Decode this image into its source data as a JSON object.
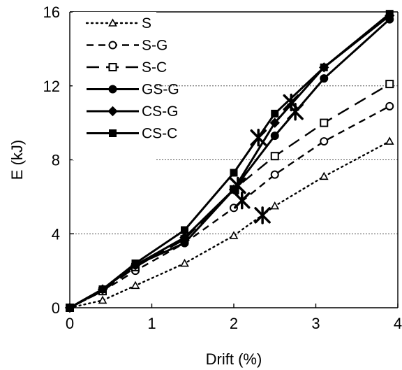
{
  "chart_data": {
    "type": "line",
    "xlabel": "Drift (%)",
    "ylabel": "E (kJ)",
    "xlim": [
      0,
      4
    ],
    "ylim": [
      0,
      16
    ],
    "xticks": [
      "0",
      "1",
      "2",
      "3",
      "4"
    ],
    "yticks": [
      "0",
      "4",
      "8",
      "12",
      "16"
    ],
    "grid": "horizontal dotted lines at y ticks",
    "legend_position": "top-left",
    "series": [
      {
        "name": "S",
        "line_style": "dotted",
        "marker": "triangle-open",
        "x": [
          0,
          0.4,
          0.8,
          1.4,
          2.0,
          2.5,
          3.1,
          3.9
        ],
        "y": [
          0,
          0.4,
          1.2,
          2.4,
          3.9,
          5.5,
          7.1,
          9.0
        ]
      },
      {
        "name": "S-G",
        "line_style": "dashed",
        "marker": "circle-open",
        "x": [
          0,
          0.4,
          0.8,
          1.4,
          2.0,
          2.5,
          3.1,
          3.9
        ],
        "y": [
          0,
          0.9,
          2.0,
          3.5,
          5.4,
          7.2,
          9.0,
          10.9
        ]
      },
      {
        "name": "S-C",
        "line_style": "long-dash",
        "marker": "square-open",
        "x": [
          0,
          0.4,
          0.8,
          1.4,
          2.0,
          2.5,
          3.1,
          3.9
        ],
        "y": [
          0,
          0.9,
          2.2,
          3.7,
          6.4,
          8.2,
          10.0,
          12.1
        ]
      },
      {
        "name": "GS-G",
        "line_style": "solid",
        "marker": "circle-filled",
        "x": [
          0,
          0.4,
          0.8,
          1.4,
          2.0,
          2.5,
          3.1,
          3.9
        ],
        "y": [
          0,
          1.0,
          2.3,
          3.5,
          6.4,
          9.3,
          12.4,
          15.6
        ]
      },
      {
        "name": "CS-G",
        "line_style": "solid",
        "marker": "diamond-filled",
        "x": [
          0,
          0.4,
          0.8,
          1.4,
          2.0,
          2.5,
          3.1,
          3.9
        ],
        "y": [
          0,
          1.0,
          2.3,
          3.8,
          6.4,
          10.0,
          13.0,
          15.8
        ]
      },
      {
        "name": "CS-C",
        "line_style": "solid",
        "marker": "square-filled",
        "x": [
          0,
          0.4,
          0.8,
          1.4,
          2.0,
          2.5,
          3.1,
          3.9
        ],
        "y": [
          0,
          1.0,
          2.4,
          4.2,
          7.3,
          10.5,
          13.0,
          15.9
        ]
      }
    ],
    "annotations": [
      {
        "marker": "asterisk",
        "x": 2.35,
        "y": 5.0
      },
      {
        "marker": "asterisk",
        "x": 2.1,
        "y": 5.8
      },
      {
        "marker": "asterisk",
        "x": 2.05,
        "y": 6.6
      },
      {
        "marker": "asterisk",
        "x": 2.3,
        "y": 9.2
      },
      {
        "marker": "asterisk",
        "x": 2.75,
        "y": 10.6
      },
      {
        "marker": "asterisk",
        "x": 2.7,
        "y": 11.1
      }
    ]
  }
}
